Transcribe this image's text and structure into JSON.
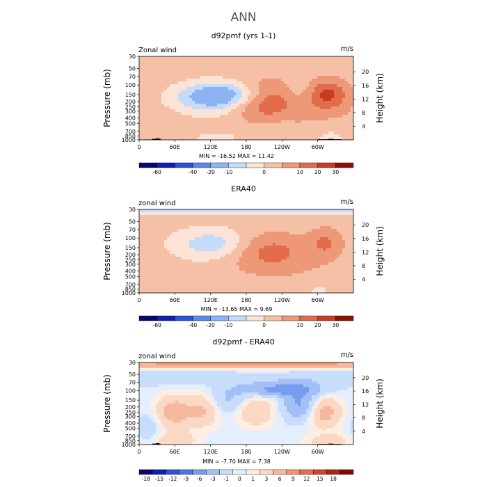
{
  "figure": {
    "title": "ANN"
  },
  "panels": [
    {
      "title": "d92pmf (yrs 1-1)",
      "left_label": "Zonal wind",
      "right_label": "m/s",
      "ylabel_left": "Pressure (mb)",
      "ylabel_right": "Height (km)",
      "stats": "MIN = -16.52   MAX =  11.42"
    },
    {
      "title": "ERA40",
      "left_label": "zonal wind",
      "right_label": "m/s",
      "ylabel_left": "Pressure (mb)",
      "ylabel_right": "Height (km)",
      "stats": "MIN = -13.65   MAX =   9.69"
    },
    {
      "title": "d92pmf - ERA40",
      "left_label": "zonal wind",
      "right_label": "m/s",
      "ylabel_left": "Pressure (mb)",
      "ylabel_right": "Height (km)",
      "stats": "MIN =  -7.70   MAX =   7.38"
    }
  ],
  "chart_data": [
    {
      "type": "heatmap",
      "title": "d92pmf (yrs 1-1)",
      "x_ticks": [
        "0",
        "60E",
        "120E",
        "180",
        "120W",
        "60W"
      ],
      "x_tick_lon": [
        0,
        60,
        120,
        180,
        240,
        300
      ],
      "xlim": [
        0,
        360
      ],
      "y_ticks_pressure": [
        "30",
        "50",
        "70",
        "100",
        "150",
        "200",
        "250",
        "300",
        "400",
        "500",
        "700",
        "850",
        "1000"
      ],
      "y_tick_values_mb": [
        30,
        50,
        70,
        100,
        150,
        200,
        250,
        300,
        400,
        500,
        700,
        850,
        1000
      ],
      "y_ticks_height": [
        "4",
        "8",
        "12",
        "16",
        "20"
      ],
      "ylim_mb": [
        1000,
        30
      ],
      "colorbar_levels": [
        "-60",
        "-40",
        "-20",
        "-10",
        "0",
        "10",
        "20",
        "30"
      ],
      "min": -16.52,
      "max": 11.42,
      "units": "m/s",
      "features": [
        {
          "lon": 145,
          "p": 150,
          "sx": 50,
          "sy": 0.38,
          "amp": -18
        },
        {
          "lon": 105,
          "p": 220,
          "sx": 55,
          "sy": 0.45,
          "amp": -6
        },
        {
          "lon": 205,
          "p": 180,
          "sx": 38,
          "sy": 0.55,
          "amp": 14
        },
        {
          "lon": 318,
          "p": 150,
          "sx": 24,
          "sy": 0.45,
          "amp": 13
        },
        {
          "lon": 260,
          "p": 300,
          "sx": 60,
          "sy": 0.8,
          "amp": 3
        },
        {
          "lon": 40,
          "p": 380,
          "sx": 45,
          "sy": 0.9,
          "amp": 2.5
        },
        {
          "lon": 270,
          "p": 120,
          "sx": 15,
          "sy": 0.4,
          "amp": -3.5
        },
        {
          "lon": 235,
          "p": 600,
          "sx": 20,
          "sy": 0.3,
          "amp": -2
        },
        {
          "lon": 30,
          "p": 950,
          "sx": 30,
          "sy": 0.25,
          "amp": -3
        },
        {
          "lon": 125,
          "p": 900,
          "sx": 55,
          "sy": 0.25,
          "amp": -3
        },
        {
          "lon": 320,
          "p": 900,
          "sx": 20,
          "sy": 0.3,
          "amp": -4
        },
        {
          "lon": 60,
          "p": 800,
          "sx": 20,
          "sy": 0.3,
          "amp": 2
        }
      ],
      "background": 2.0
    },
    {
      "type": "heatmap",
      "title": "ERA40",
      "x_ticks": [
        "0",
        "60E",
        "120E",
        "180",
        "120W",
        "60W"
      ],
      "x_tick_lon": [
        0,
        60,
        120,
        180,
        240,
        300
      ],
      "xlim": [
        0,
        360
      ],
      "y_ticks_pressure": [
        "30",
        "50",
        "70",
        "100",
        "150",
        "200",
        "250",
        "300",
        "400",
        "500",
        "700",
        "850",
        "1000"
      ],
      "y_tick_values_mb": [
        30,
        50,
        70,
        100,
        150,
        200,
        250,
        300,
        400,
        500,
        700,
        850,
        1000
      ],
      "y_ticks_height": [
        "4",
        "8",
        "12",
        "16",
        "20"
      ],
      "ylim_mb": [
        1000,
        30
      ],
      "colorbar_levels": [
        "-60",
        "-40",
        "-20",
        "-10",
        "0",
        "10",
        "20",
        "30"
      ],
      "min": -13.65,
      "max": 9.69,
      "units": "m/s",
      "features": [
        {
          "lon": 125,
          "p": 130,
          "sx": 45,
          "sy": 0.45,
          "amp": -11
        },
        {
          "lon": 215,
          "p": 170,
          "sx": 48,
          "sy": 0.55,
          "amp": 10
        },
        {
          "lon": 315,
          "p": 120,
          "sx": 20,
          "sy": 0.45,
          "amp": 8
        },
        {
          "lon": 30,
          "p": 32,
          "sx": 400,
          "sy": 0.12,
          "amp": -8
        },
        {
          "lon": 60,
          "p": 800,
          "sx": 35,
          "sy": 0.3,
          "amp": 2.5
        },
        {
          "lon": 300,
          "p": 850,
          "sx": 30,
          "sy": 0.3,
          "amp": -3
        },
        {
          "lon": 260,
          "p": 400,
          "sx": 80,
          "sy": 0.6,
          "amp": 2
        }
      ],
      "background": 2.0
    },
    {
      "type": "heatmap",
      "title": "d92pmf - ERA40",
      "x_ticks": [
        "0",
        "60E",
        "120E",
        "180",
        "120W",
        "60W"
      ],
      "x_tick_lon": [
        0,
        60,
        120,
        180,
        240,
        300
      ],
      "xlim": [
        0,
        360
      ],
      "y_ticks_pressure": [
        "30",
        "50",
        "70",
        "100",
        "150",
        "200",
        "250",
        "300",
        "400",
        "500",
        "700",
        "850",
        "1000"
      ],
      "y_tick_values_mb": [
        30,
        50,
        70,
        100,
        150,
        200,
        250,
        300,
        400,
        500,
        700,
        850,
        1000
      ],
      "y_ticks_height": [
        "4",
        "8",
        "12",
        "16",
        "20"
      ],
      "ylim_mb": [
        1000,
        30
      ],
      "colorbar_levels": [
        "-18",
        "-15",
        "-12",
        "-9",
        "-6",
        "-3",
        "-1",
        "0",
        "1",
        "3",
        "6",
        "9",
        "12",
        "15",
        "18"
      ],
      "min": -7.7,
      "max": 7.38,
      "units": "m/s",
      "features": [
        {
          "lon": 180,
          "p": 32,
          "sx": 400,
          "sy": 0.12,
          "amp": 7
        },
        {
          "lon": 240,
          "p": 95,
          "sx": 45,
          "sy": 0.2,
          "amp": -7
        },
        {
          "lon": 270,
          "p": 180,
          "sx": 20,
          "sy": 0.45,
          "amp": -6
        },
        {
          "lon": 60,
          "p": 250,
          "sx": 22,
          "sy": 0.5,
          "amp": 5
        },
        {
          "lon": 110,
          "p": 220,
          "sx": 18,
          "sy": 0.5,
          "amp": 4
        },
        {
          "lon": 195,
          "p": 230,
          "sx": 22,
          "sy": 0.45,
          "amp": 4
        },
        {
          "lon": 310,
          "p": 250,
          "sx": 20,
          "sy": 0.45,
          "amp": 5
        },
        {
          "lon": 150,
          "p": 150,
          "sx": 30,
          "sy": 0.4,
          "amp": -3
        },
        {
          "lon": 30,
          "p": 60,
          "sx": 200,
          "sy": 0.2,
          "amp": -2
        },
        {
          "lon": 60,
          "p": 850,
          "sx": 25,
          "sy": 0.25,
          "amp": 3
        },
        {
          "lon": 320,
          "p": 900,
          "sx": 25,
          "sy": 0.25,
          "amp": 3
        },
        {
          "lon": 15,
          "p": 500,
          "sx": 15,
          "sy": 0.5,
          "amp": -2
        }
      ],
      "background": -0.5
    }
  ]
}
